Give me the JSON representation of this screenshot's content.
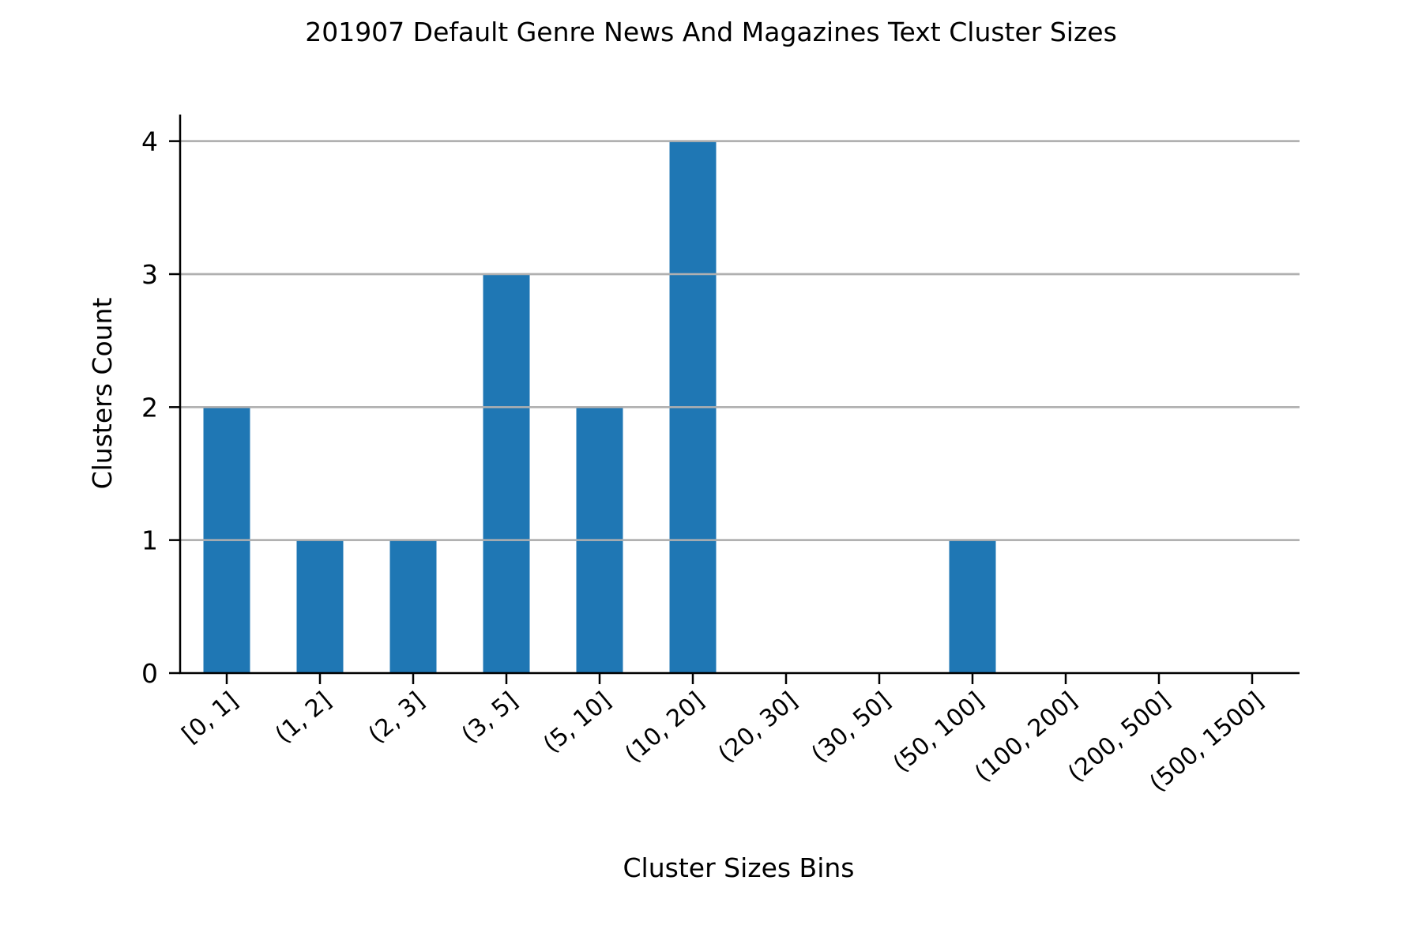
{
  "chart_data": {
    "type": "bar",
    "title": "201907 Default Genre News And Magazines Text Cluster Sizes",
    "xlabel": "Cluster Sizes Bins",
    "ylabel": "Clusters Count",
    "categories": [
      "[0, 1]",
      "(1, 2]",
      "(2, 3]",
      "(3, 5]",
      "(5, 10]",
      "(10, 20]",
      "(20, 30]",
      "(30, 50]",
      "(50, 100]",
      "(100, 200]",
      "(200, 500]",
      "(500, 1500]"
    ],
    "values": [
      2,
      1,
      1,
      3,
      2,
      4,
      0,
      0,
      1,
      0,
      0,
      0
    ],
    "yticks": [
      0,
      1,
      2,
      3,
      4
    ],
    "ylim": [
      0,
      4.2
    ],
    "grid": "y",
    "bar_color": "#1f77b4",
    "grid_color": "#b0b0b0"
  }
}
